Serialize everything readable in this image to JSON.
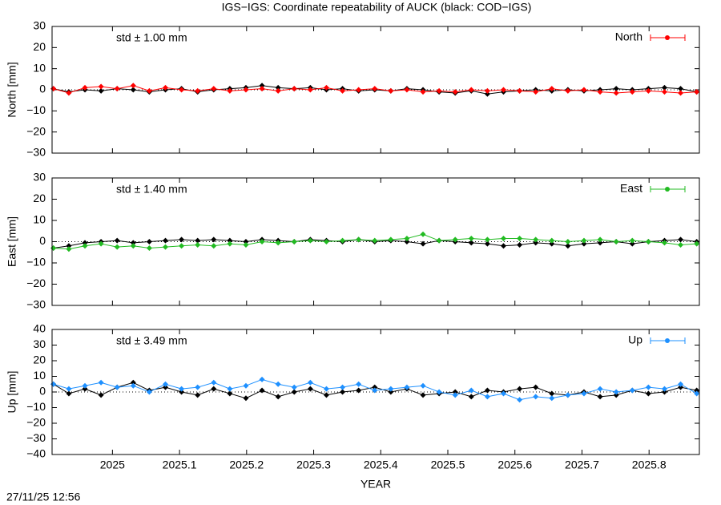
{
  "title": "IGS−IGS: Coordinate repeatability of AUCK (black: COD−IGS)",
  "footer": "27/11/25 12:56",
  "chart_data": [
    {
      "type": "line",
      "ylabel": "North [mm]",
      "annotation": "std ± 1.00 mm",
      "legend": "upper right",
      "zero_line": true,
      "xlim": [
        2024.91,
        2025.875
      ],
      "xticks": [
        2025,
        2025.1,
        2025.2,
        2025.3,
        2025.4,
        2025.5,
        2025.6,
        2025.7,
        2025.8
      ],
      "ylim": [
        -30,
        30
      ],
      "yticks": [
        {
          "value": -30,
          "label": "−30"
        },
        {
          "value": -20,
          "label": "−20"
        },
        {
          "value": -10,
          "label": "−10"
        },
        0,
        10,
        20,
        30
      ],
      "x": [
        2024.912,
        2024.935,
        2024.959,
        2024.983,
        2025.007,
        2025.031,
        2025.055,
        2025.079,
        2025.103,
        2025.127,
        2025.151,
        2025.175,
        2025.199,
        2025.223,
        2025.247,
        2025.271,
        2025.295,
        2025.319,
        2025.343,
        2025.367,
        2025.391,
        2025.415,
        2025.439,
        2025.463,
        2025.487,
        2025.511,
        2025.535,
        2025.559,
        2025.583,
        2025.607,
        2025.631,
        2025.655,
        2025.679,
        2025.703,
        2025.727,
        2025.751,
        2025.775,
        2025.799,
        2025.823,
        2025.847,
        2025.871
      ],
      "series": [
        {
          "color": "#000000",
          "values": [
            0.5,
            -1,
            0,
            -0.5,
            0.5,
            0,
            -1,
            0,
            0.5,
            -1,
            0,
            0.5,
            1,
            2,
            1,
            0.5,
            1,
            0,
            0.5,
            -0.5,
            0,
            -0.5,
            0.5,
            0,
            -1,
            -1.5,
            -0.5,
            -2,
            -1,
            -0.5,
            0,
            -0.5,
            0,
            -0.5,
            0,
            0.5,
            0,
            0.5,
            1,
            0.5,
            -1
          ]
        },
        {
          "name": "North",
          "color": "#ff0000",
          "values": [
            0.5,
            -1.5,
            1,
            1.5,
            0.5,
            2,
            -0.5,
            1,
            0,
            -0.5,
            0.5,
            -0.5,
            0,
            0.5,
            -0.5,
            0.5,
            0,
            1,
            -0.5,
            0,
            0.5,
            -0.5,
            0,
            -1,
            -0.5,
            -1,
            0,
            -0.5,
            0,
            -0.5,
            -1,
            0.5,
            -0.5,
            0,
            -1,
            -1.5,
            -1,
            -0.5,
            -1,
            -1.5,
            -1
          ]
        }
      ]
    },
    {
      "type": "line",
      "ylabel": "East [mm]",
      "annotation": "std ± 1.40 mm",
      "legend": "upper right",
      "zero_line": true,
      "xlim": [
        2024.91,
        2025.875
      ],
      "xticks": [
        2025,
        2025.1,
        2025.2,
        2025.3,
        2025.4,
        2025.5,
        2025.6,
        2025.7,
        2025.8
      ],
      "ylim": [
        -30,
        30
      ],
      "yticks": [
        {
          "value": -30,
          "label": "−30"
        },
        {
          "value": -20,
          "label": "−20"
        },
        {
          "value": -10,
          "label": "−10"
        },
        0,
        10,
        20,
        30
      ],
      "x": [
        2024.912,
        2024.935,
        2024.959,
        2024.983,
        2025.007,
        2025.031,
        2025.055,
        2025.079,
        2025.103,
        2025.127,
        2025.151,
        2025.175,
        2025.199,
        2025.223,
        2025.247,
        2025.271,
        2025.295,
        2025.319,
        2025.343,
        2025.367,
        2025.391,
        2025.415,
        2025.439,
        2025.463,
        2025.487,
        2025.511,
        2025.535,
        2025.559,
        2025.583,
        2025.607,
        2025.631,
        2025.655,
        2025.679,
        2025.703,
        2025.727,
        2025.751,
        2025.775,
        2025.799,
        2025.823,
        2025.847,
        2025.871
      ],
      "series": [
        {
          "color": "#000000",
          "values": [
            -3,
            -2,
            -0.5,
            0,
            0.5,
            -0.5,
            0,
            0.5,
            1,
            0.5,
            1,
            0.5,
            0,
            1,
            0.5,
            0,
            1,
            0.5,
            0,
            1,
            0,
            0.5,
            0,
            -1,
            0.5,
            0,
            -0.5,
            -1,
            -2,
            -1.5,
            -0.5,
            -1,
            -2,
            -1,
            -0.5,
            0,
            -1,
            0,
            0.5,
            1,
            0
          ]
        },
        {
          "name": "East",
          "color": "#22bb22",
          "values": [
            -3,
            -3.5,
            -2,
            -1,
            -2.5,
            -2,
            -3,
            -2.5,
            -2,
            -1.5,
            -2,
            -1,
            -1.5,
            0,
            -0.5,
            0,
            0.5,
            0,
            0.5,
            1,
            0.5,
            1,
            1.5,
            3.5,
            0.5,
            1,
            1.5,
            1,
            1.5,
            1.5,
            1,
            0.5,
            0,
            0.5,
            1,
            0,
            0.5,
            0,
            -0.5,
            -1.5,
            -1
          ]
        }
      ]
    },
    {
      "type": "line",
      "ylabel": "Up [mm]",
      "xlabel": "YEAR",
      "annotation": "std ± 3.49 mm",
      "legend": "upper right",
      "zero_line": true,
      "xlim": [
        2024.91,
        2025.875
      ],
      "xticks": [
        2025,
        2025.1,
        2025.2,
        2025.3,
        2025.4,
        2025.5,
        2025.6,
        2025.7,
        2025.8
      ],
      "ylim": [
        -40,
        40
      ],
      "yticks": [
        {
          "value": -40,
          "label": "−40"
        },
        {
          "value": -30,
          "label": "−30"
        },
        {
          "value": -20,
          "label": "−20"
        },
        {
          "value": -10,
          "label": "−10"
        },
        0,
        10,
        20,
        30,
        40
      ],
      "x": [
        2024.912,
        2024.935,
        2024.959,
        2024.983,
        2025.007,
        2025.031,
        2025.055,
        2025.079,
        2025.103,
        2025.127,
        2025.151,
        2025.175,
        2025.199,
        2025.223,
        2025.247,
        2025.271,
        2025.295,
        2025.319,
        2025.343,
        2025.367,
        2025.391,
        2025.415,
        2025.439,
        2025.463,
        2025.487,
        2025.511,
        2025.535,
        2025.559,
        2025.583,
        2025.607,
        2025.631,
        2025.655,
        2025.679,
        2025.703,
        2025.727,
        2025.751,
        2025.775,
        2025.799,
        2025.823,
        2025.847,
        2025.871
      ],
      "series": [
        {
          "color": "#000000",
          "values": [
            5,
            -1,
            2,
            -2,
            3,
            6,
            1,
            3,
            0,
            -2,
            2,
            -1,
            -4,
            1,
            -3,
            0,
            2,
            -2,
            0,
            1,
            3,
            0,
            2,
            -2,
            -1,
            0,
            -3,
            1,
            0,
            2,
            3,
            -1,
            -2,
            0,
            -3,
            -2,
            1,
            -1,
            0,
            3,
            1
          ]
        },
        {
          "name": "Up",
          "color": "#1e90ff",
          "values": [
            5,
            2,
            4,
            6,
            3,
            4,
            0,
            5,
            2,
            3,
            6,
            2,
            4,
            8,
            5,
            3,
            6,
            2,
            3,
            5,
            1,
            2,
            3,
            4,
            0,
            -2,
            1,
            -3,
            -1,
            -5,
            -3,
            -4,
            -2,
            -1,
            2,
            0,
            1,
            3,
            2,
            5,
            -1
          ]
        }
      ]
    }
  ]
}
